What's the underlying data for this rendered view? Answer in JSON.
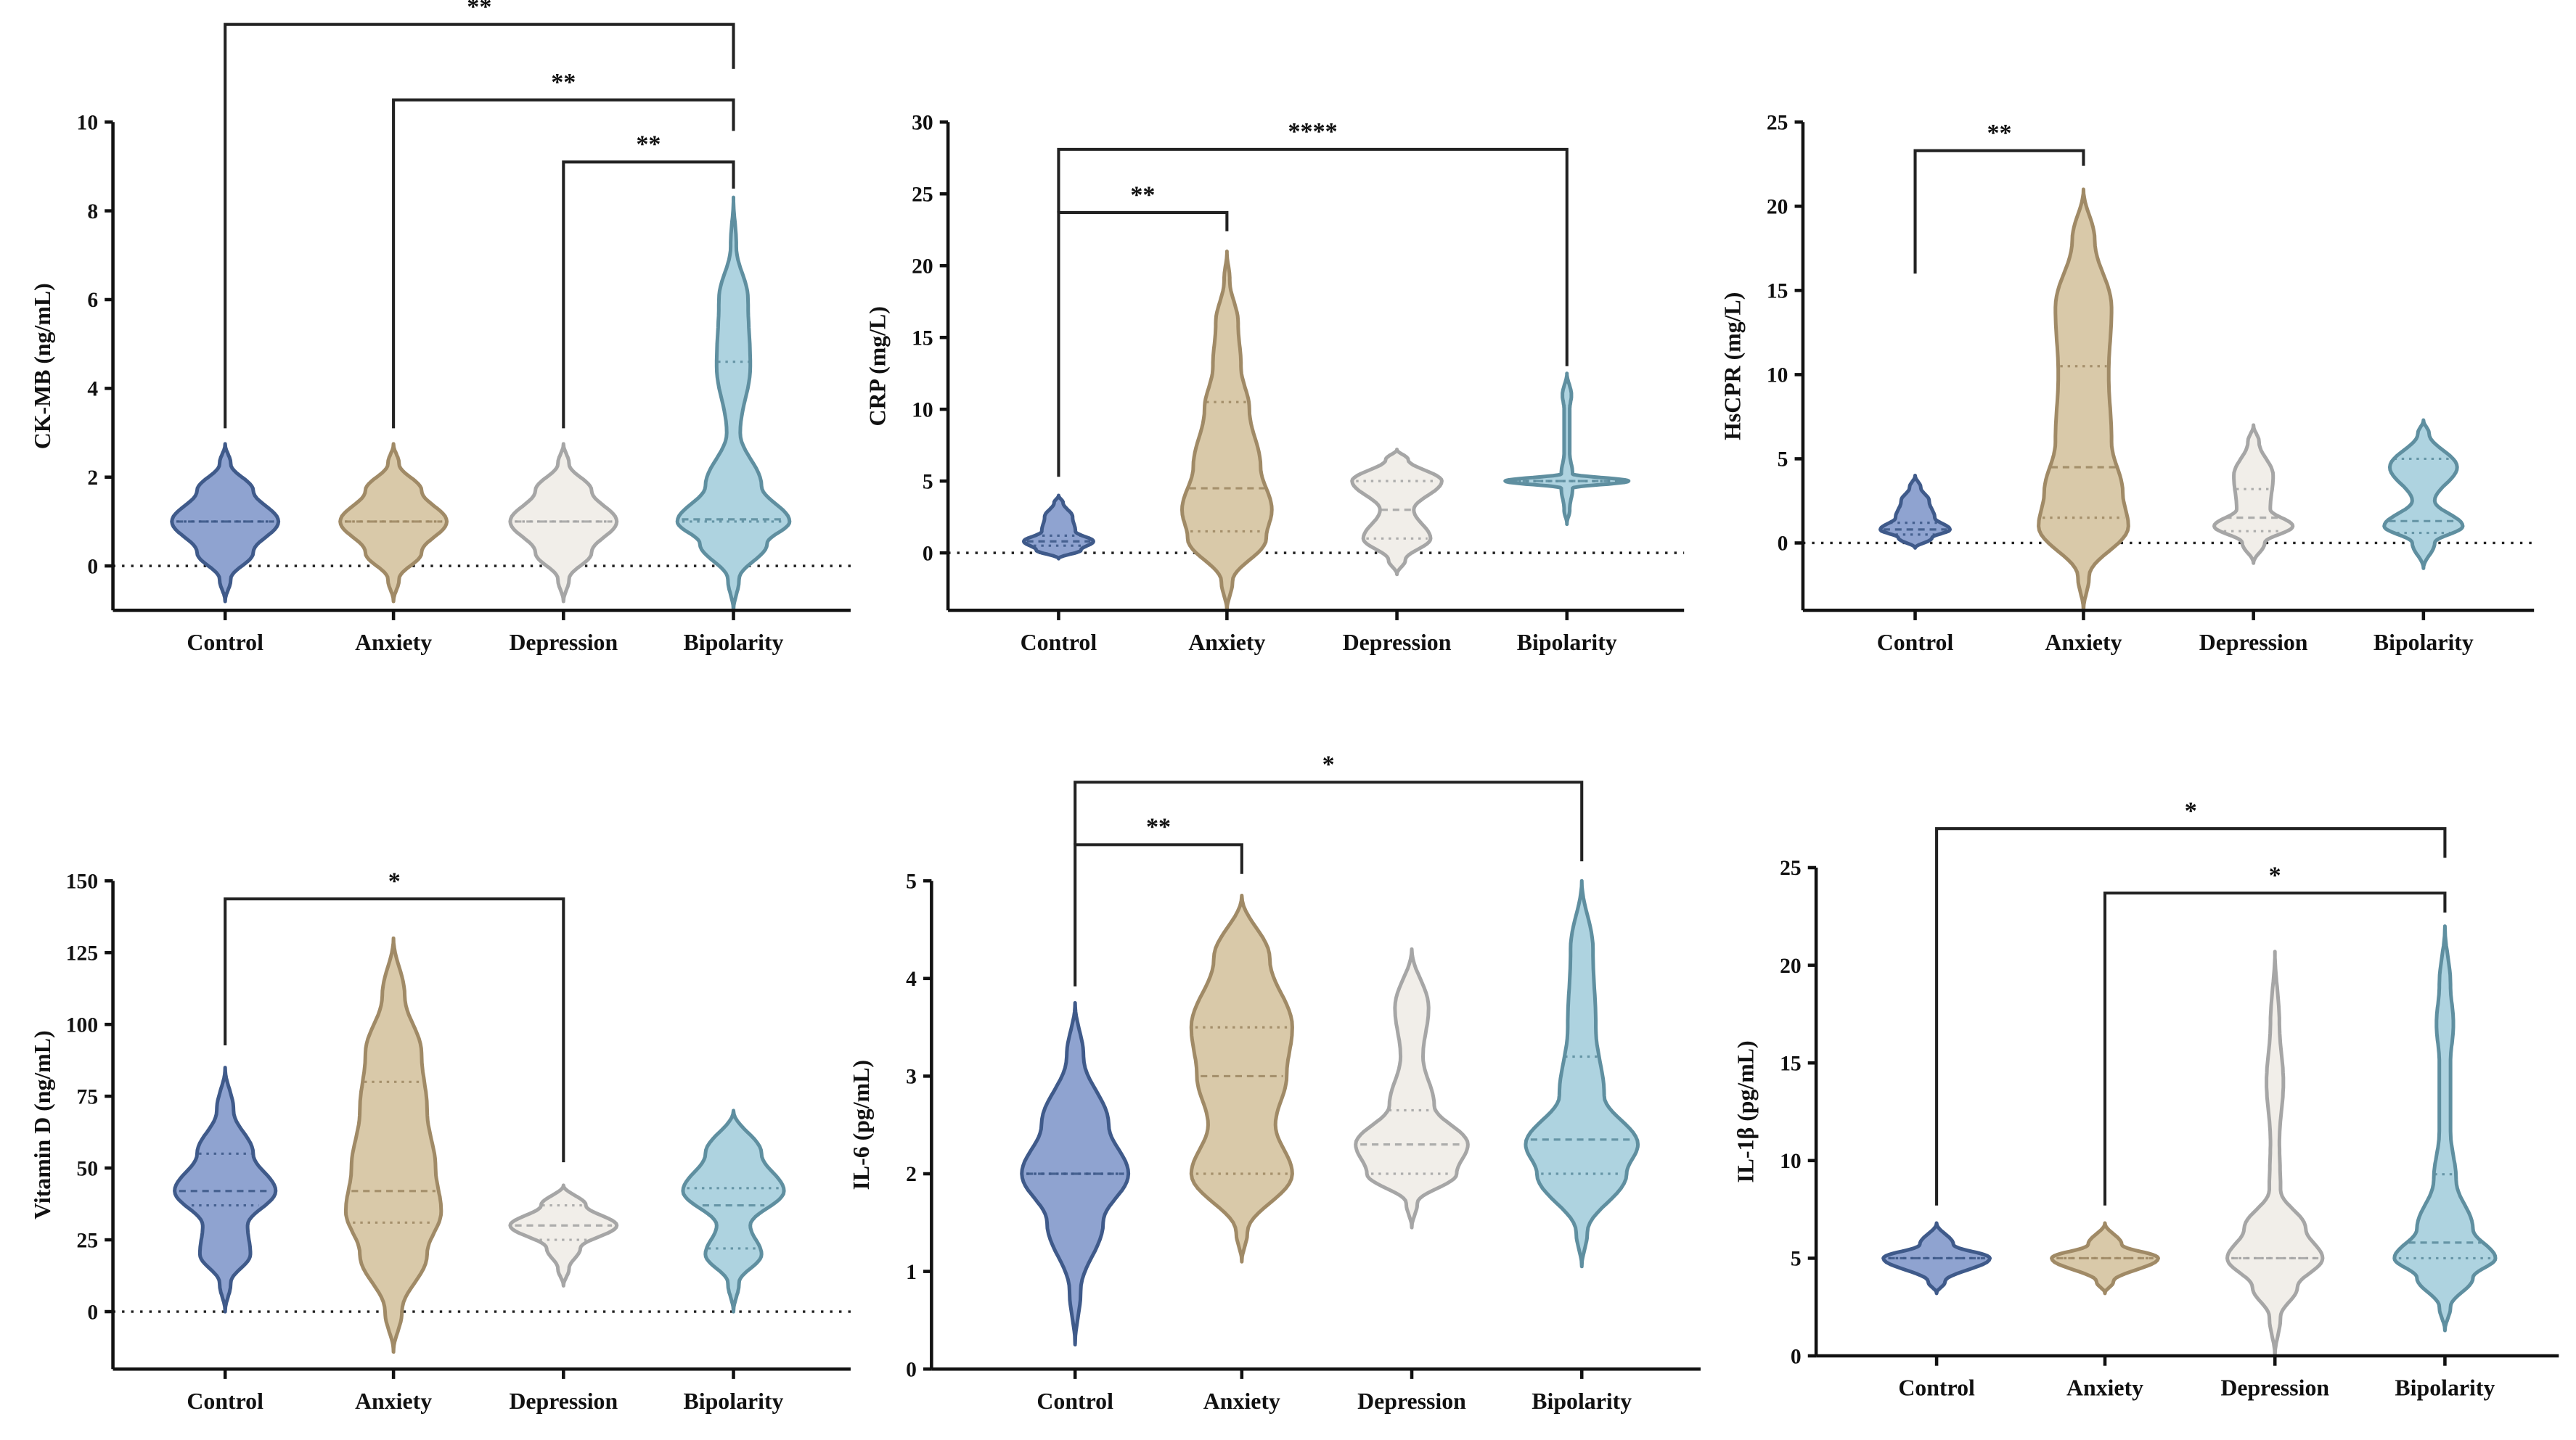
{
  "colors": {
    "Control": {
      "fill": "#8fa3d0",
      "stroke": "#3f5a8a"
    },
    "Anxiety": {
      "fill": "#d9c9a9",
      "stroke": "#a08a66"
    },
    "Depression": {
      "fill": "#f1eee9",
      "stroke": "#a6a6a6"
    },
    "Bipolarity": {
      "fill": "#aed3e0",
      "stroke": "#5f8fa0"
    }
  },
  "chart_data": [
    {
      "type": "violin",
      "ylabel": "CK-MB (ng/mL)",
      "ylim": [
        -1,
        10
      ],
      "yticks": [
        0,
        2,
        4,
        6,
        8,
        10
      ],
      "zero_line": true,
      "categories": [
        "Control",
        "Anxiety",
        "Depression",
        "Bipolarity"
      ],
      "violins": [
        {
          "density": [
            [
              -0.8,
              0
            ],
            [
              -0.3,
              0.1
            ],
            [
              0.3,
              0.5
            ],
            [
              1,
              0.95
            ],
            [
              1.7,
              0.5
            ],
            [
              2.3,
              0.1
            ],
            [
              2.75,
              0
            ]
          ],
          "median": 1,
          "q1": 1,
          "q3": 1
        },
        {
          "density": [
            [
              -0.8,
              0
            ],
            [
              -0.3,
              0.1
            ],
            [
              0.3,
              0.5
            ],
            [
              1,
              0.95
            ],
            [
              1.7,
              0.5
            ],
            [
              2.3,
              0.1
            ],
            [
              2.75,
              0
            ]
          ],
          "median": 1,
          "q1": 1,
          "q3": 1
        },
        {
          "density": [
            [
              -0.8,
              0
            ],
            [
              -0.3,
              0.1
            ],
            [
              0.3,
              0.5
            ],
            [
              1,
              0.95
            ],
            [
              1.7,
              0.5
            ],
            [
              2.3,
              0.1
            ],
            [
              2.75,
              0
            ]
          ],
          "median": 1,
          "q1": 1,
          "q3": 1
        },
        {
          "density": [
            [
              -1,
              0
            ],
            [
              -0.3,
              0.1
            ],
            [
              0.5,
              0.6
            ],
            [
              1,
              1
            ],
            [
              1.8,
              0.5
            ],
            [
              3,
              0.12
            ],
            [
              4.5,
              0.3
            ],
            [
              6,
              0.26
            ],
            [
              7.2,
              0.05
            ],
            [
              8.3,
              0
            ]
          ],
          "median": 1.05,
          "q1": 1,
          "q3": 4.6
        }
      ],
      "brackets": [
        {
          "from": 0,
          "to": 3,
          "level": 12.2,
          "left_end": 3.1,
          "right_end": 11.2,
          "label": "**"
        },
        {
          "from": 1,
          "to": 3,
          "level": 10.5,
          "left_end": 3.1,
          "right_end": 9.8,
          "label": "**"
        },
        {
          "from": 2,
          "to": 3,
          "level": 9.1,
          "left_end": 3.1,
          "right_end": 8.5,
          "label": "**"
        }
      ]
    },
    {
      "type": "violin",
      "ylabel": "CRP (mg/L)",
      "ylim": [
        -4,
        30
      ],
      "yticks": [
        0,
        5,
        10,
        15,
        20,
        25,
        30
      ],
      "zero_line": true,
      "categories": [
        "Control",
        "Anxiety",
        "Depression",
        "Bipolarity"
      ],
      "violins": [
        {
          "density": [
            [
              -0.4,
              0
            ],
            [
              0.2,
              0.4
            ],
            [
              0.8,
              0.62
            ],
            [
              1.5,
              0.3
            ],
            [
              2.5,
              0.25
            ],
            [
              3.5,
              0.08
            ],
            [
              4,
              0
            ]
          ],
          "median": 0.8,
          "q1": 0.5,
          "q3": 1.2
        },
        {
          "density": [
            [
              -4,
              0
            ],
            [
              -2,
              0.1
            ],
            [
              1,
              0.7
            ],
            [
              3,
              0.8
            ],
            [
              6,
              0.6
            ],
            [
              10,
              0.4
            ],
            [
              13,
              0.25
            ],
            [
              16,
              0.2
            ],
            [
              19,
              0.05
            ],
            [
              21,
              0
            ]
          ],
          "median": 4.5,
          "q1": 1.5,
          "q3": 10.5
        },
        {
          "density": [
            [
              -1.5,
              0
            ],
            [
              -0.5,
              0.15
            ],
            [
              1,
              0.6
            ],
            [
              3,
              0.3
            ],
            [
              5,
              0.8
            ],
            [
              6.5,
              0.2
            ],
            [
              7.2,
              0
            ]
          ],
          "median": 3,
          "q1": 1,
          "q3": 5
        },
        {
          "density": [
            [
              2,
              0
            ],
            [
              3,
              0.05
            ],
            [
              4.5,
              0.1
            ],
            [
              5,
              1.1
            ],
            [
              5.5,
              0.1
            ],
            [
              7,
              0.05
            ],
            [
              10,
              0.05
            ],
            [
              11,
              0.08
            ],
            [
              12.5,
              0
            ]
          ],
          "median": 5,
          "q1": 5,
          "q3": 5
        }
      ],
      "brackets": [
        {
          "from": 0,
          "to": 1,
          "level": 23.7,
          "left_end": 5.3,
          "right_end": 22.4,
          "label": "**"
        },
        {
          "from": 0,
          "to": 3,
          "level": 28.1,
          "left_end": 23.7,
          "right_end": 13,
          "label": "****"
        }
      ]
    },
    {
      "type": "violin",
      "ylabel": "HsCPR (mg/L)",
      "ylim": [
        -4,
        25
      ],
      "yticks": [
        0,
        5,
        10,
        15,
        20,
        25
      ],
      "zero_line": true,
      "categories": [
        "Control",
        "Anxiety",
        "Depression",
        "Bipolarity"
      ],
      "violins": [
        {
          "density": [
            [
              -0.3,
              0
            ],
            [
              0.3,
              0.3
            ],
            [
              0.8,
              0.62
            ],
            [
              1.5,
              0.35
            ],
            [
              2.5,
              0.25
            ],
            [
              3.3,
              0.1
            ],
            [
              4,
              0
            ]
          ],
          "median": 0.8,
          "q1": 0.5,
          "q3": 1.2
        },
        {
          "density": [
            [
              -4,
              0
            ],
            [
              -2,
              0.1
            ],
            [
              1,
              0.8
            ],
            [
              3,
              0.7
            ],
            [
              6,
              0.5
            ],
            [
              10,
              0.45
            ],
            [
              14,
              0.5
            ],
            [
              18,
              0.2
            ],
            [
              21,
              0
            ]
          ],
          "median": 4.5,
          "q1": 1.5,
          "q3": 10.5
        },
        {
          "density": [
            [
              -1.2,
              0
            ],
            [
              0,
              0.2
            ],
            [
              1,
              0.7
            ],
            [
              2,
              0.3
            ],
            [
              4,
              0.35
            ],
            [
              6,
              0.1
            ],
            [
              7,
              0
            ]
          ],
          "median": 1.5,
          "q1": 0.7,
          "q3": 3.2
        },
        {
          "density": [
            [
              -1.5,
              0
            ],
            [
              0,
              0.2
            ],
            [
              1,
              0.7
            ],
            [
              2.5,
              0.2
            ],
            [
              4.5,
              0.6
            ],
            [
              6.5,
              0.1
            ],
            [
              7.3,
              0
            ]
          ],
          "median": 1.3,
          "q1": 0.6,
          "q3": 5
        }
      ],
      "brackets": [
        {
          "from": 0,
          "to": 1,
          "level": 23.3,
          "left_end": 16,
          "right_end": 22.4,
          "label": "**"
        }
      ]
    },
    {
      "type": "violin",
      "ylabel": "Vitamin D (ng/mL)",
      "ylim": [
        -20,
        150
      ],
      "yticks": [
        0,
        25,
        50,
        75,
        100,
        125,
        150
      ],
      "zero_line": true,
      "categories": [
        "Control",
        "Anxiety",
        "Depression",
        "Bipolarity"
      ],
      "violins": [
        {
          "density": [
            [
              0,
              0
            ],
            [
              10,
              0.1
            ],
            [
              20,
              0.45
            ],
            [
              30,
              0.4
            ],
            [
              42,
              0.9
            ],
            [
              55,
              0.5
            ],
            [
              70,
              0.15
            ],
            [
              85,
              0
            ]
          ],
          "median": 42,
          "q1": 37,
          "q3": 55
        },
        {
          "density": [
            [
              -14,
              0
            ],
            [
              0,
              0.15
            ],
            [
              20,
              0.6
            ],
            [
              35,
              0.85
            ],
            [
              50,
              0.75
            ],
            [
              70,
              0.6
            ],
            [
              90,
              0.5
            ],
            [
              110,
              0.2
            ],
            [
              130,
              0
            ]
          ],
          "median": 42,
          "q1": 31,
          "q3": 80
        },
        {
          "density": [
            [
              9,
              0
            ],
            [
              15,
              0.1
            ],
            [
              22,
              0.3
            ],
            [
              30,
              0.95
            ],
            [
              37,
              0.4
            ],
            [
              44,
              0
            ]
          ],
          "median": 30,
          "q1": 25,
          "q3": 37
        },
        {
          "density": [
            [
              0,
              0
            ],
            [
              10,
              0.1
            ],
            [
              20,
              0.5
            ],
            [
              30,
              0.3
            ],
            [
              42,
              0.9
            ],
            [
              55,
              0.5
            ],
            [
              70,
              0
            ]
          ],
          "median": 37,
          "q1": 22,
          "q3": 43
        }
      ],
      "brackets": [
        {
          "from": 0,
          "to": 2,
          "level": 143.7,
          "left_end": 92.7,
          "right_end": 52,
          "label": "*"
        }
      ]
    },
    {
      "type": "violin",
      "ylabel": "IL-6 (pg/mL)",
      "ylim": [
        0,
        5
      ],
      "yticks": [
        0,
        1,
        2,
        3,
        4,
        5
      ],
      "zero_line": false,
      "categories": [
        "Control",
        "Anxiety",
        "Depression",
        "Bipolarity"
      ],
      "violins": [
        {
          "density": [
            [
              0.25,
              0
            ],
            [
              0.8,
              0.1
            ],
            [
              1.5,
              0.5
            ],
            [
              2,
              0.95
            ],
            [
              2.5,
              0.6
            ],
            [
              3.2,
              0.15
            ],
            [
              3.75,
              0
            ]
          ],
          "median": 2,
          "q1": 2,
          "q3": 2
        },
        {
          "density": [
            [
              1.1,
              0
            ],
            [
              1.4,
              0.1
            ],
            [
              2,
              0.9
            ],
            [
              2.5,
              0.6
            ],
            [
              3,
              0.8
            ],
            [
              3.5,
              0.9
            ],
            [
              4.2,
              0.5
            ],
            [
              4.85,
              0
            ]
          ],
          "median": 3,
          "q1": 2,
          "q3": 3.5
        },
        {
          "density": [
            [
              1.45,
              0
            ],
            [
              1.7,
              0.1
            ],
            [
              2,
              0.8
            ],
            [
              2.3,
              1
            ],
            [
              2.7,
              0.4
            ],
            [
              3.2,
              0.2
            ],
            [
              3.7,
              0.3
            ],
            [
              4.3,
              0
            ]
          ],
          "median": 2.3,
          "q1": 2,
          "q3": 2.65
        },
        {
          "density": [
            [
              1.05,
              0
            ],
            [
              1.4,
              0.1
            ],
            [
              2,
              0.8
            ],
            [
              2.3,
              1
            ],
            [
              2.8,
              0.4
            ],
            [
              3.5,
              0.25
            ],
            [
              4.3,
              0.2
            ],
            [
              5,
              0
            ]
          ],
          "median": 2.35,
          "q1": 2,
          "q3": 3.2
        }
      ],
      "brackets": [
        {
          "from": 0,
          "to": 1,
          "level": 5.37,
          "left_end": 3.92,
          "right_end": 5.07,
          "label": "**"
        },
        {
          "from": 0,
          "to": 3,
          "level": 6.01,
          "left_end": 5.37,
          "right_end": 5.2,
          "label": "*"
        }
      ]
    },
    {
      "type": "violin",
      "ylabel": "IL-1β (pg/mL)",
      "ylim": [
        0,
        25
      ],
      "yticks": [
        0,
        5,
        10,
        15,
        20,
        25
      ],
      "zero_line": false,
      "categories": [
        "Control",
        "Anxiety",
        "Depression",
        "Bipolarity"
      ],
      "violins": [
        {
          "density": [
            [
              3.2,
              0
            ],
            [
              3.8,
              0.15
            ],
            [
              5,
              0.95
            ],
            [
              5.7,
              0.3
            ],
            [
              6.8,
              0
            ]
          ],
          "median": 5,
          "q1": 5,
          "q3": 5
        },
        {
          "density": [
            [
              3.2,
              0
            ],
            [
              3.8,
              0.15
            ],
            [
              5,
              0.95
            ],
            [
              5.7,
              0.3
            ],
            [
              6.8,
              0
            ]
          ],
          "median": 5,
          "q1": 5,
          "q3": 5
        },
        {
          "density": [
            [
              0,
              0
            ],
            [
              2,
              0.1
            ],
            [
              3.5,
              0.4
            ],
            [
              5,
              0.85
            ],
            [
              6.5,
              0.55
            ],
            [
              8.5,
              0.1
            ],
            [
              11,
              0.08
            ],
            [
              14,
              0.15
            ],
            [
              17,
              0.08
            ],
            [
              20.7,
              0
            ]
          ],
          "median": 5,
          "q1": 5,
          "q3": 5
        },
        {
          "density": [
            [
              1.3,
              0
            ],
            [
              2.5,
              0.1
            ],
            [
              4,
              0.5
            ],
            [
              5,
              0.9
            ],
            [
              6.5,
              0.5
            ],
            [
              9,
              0.2
            ],
            [
              11.5,
              0.1
            ],
            [
              15,
              0.1
            ],
            [
              17,
              0.15
            ],
            [
              19,
              0.1
            ],
            [
              22,
              0
            ]
          ],
          "median": 5.8,
          "q1": 5,
          "q3": 9.3
        }
      ],
      "brackets": [
        {
          "from": 0,
          "to": 3,
          "level": 27.0,
          "left_end": 7.7,
          "right_end": 25.5,
          "label": "*"
        },
        {
          "from": 1,
          "to": 3,
          "level": 23.7,
          "left_end": 7.7,
          "right_end": 22.7,
          "label": "*"
        }
      ]
    }
  ]
}
